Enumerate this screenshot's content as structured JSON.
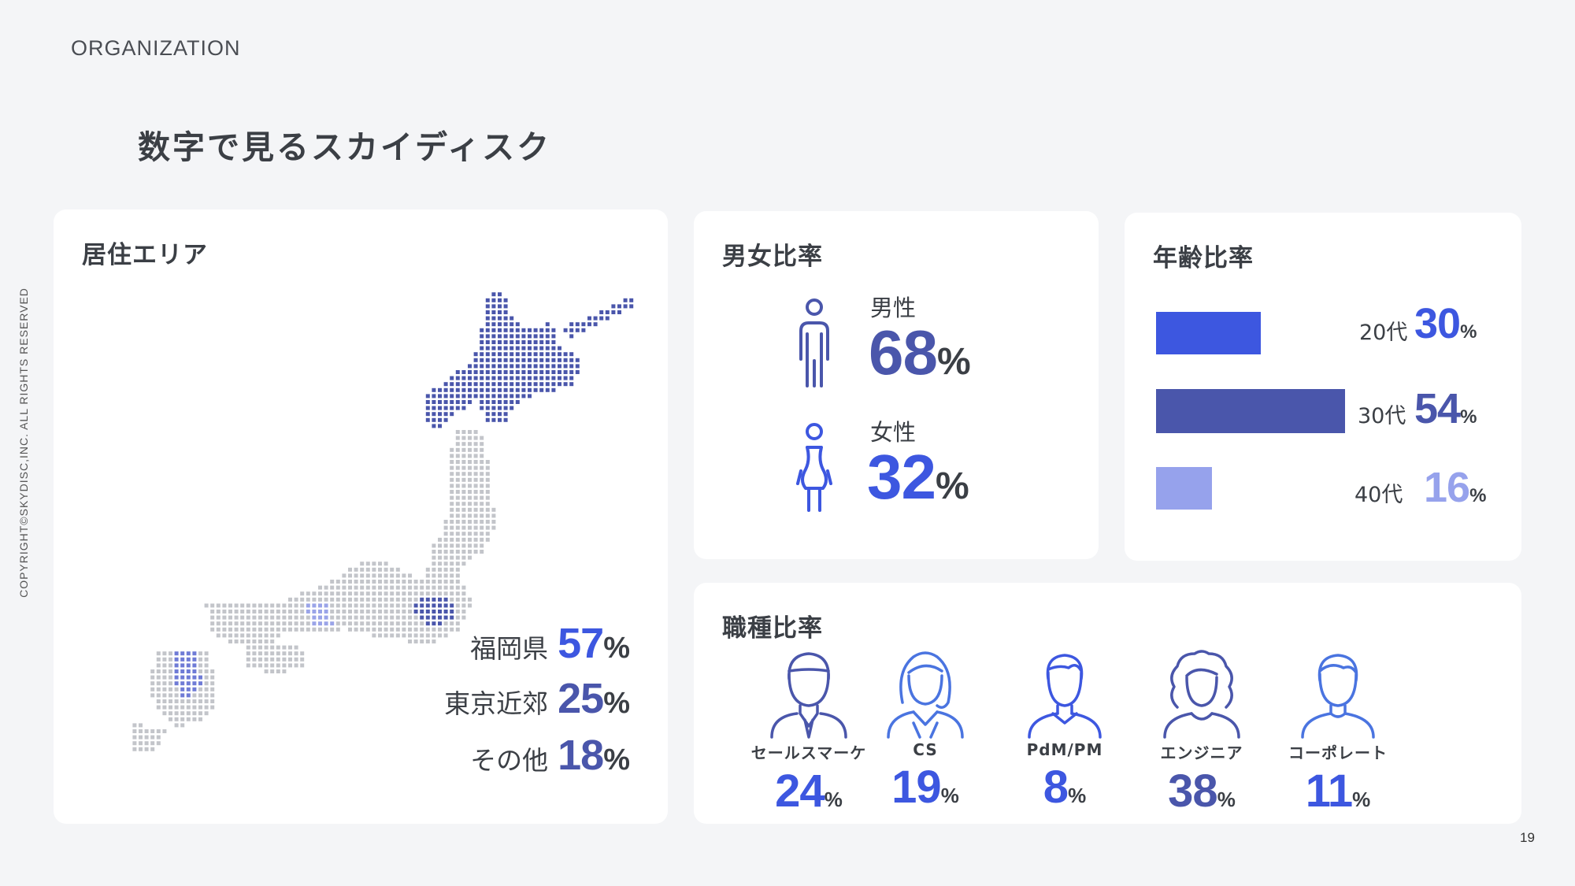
{
  "header": {
    "section_label": "ORGANIZATION",
    "title": "数字で見るスカイディスク"
  },
  "footer": {
    "copyright": "COPYRIGHT©SKYDISC,INC. ALL RIGHTS RESERVED",
    "page_number": "19"
  },
  "colors": {
    "accent_blue": "#3d57e0",
    "dark_indigo": "#4a56ab",
    "light_periwinkle": "#96a2ec",
    "text_dark": "#3b3f45"
  },
  "residence": {
    "title": "居住エリア",
    "stats": [
      {
        "label": "福岡県",
        "value": "57",
        "unit": "%"
      },
      {
        "label": "東京近郊",
        "value": "25",
        "unit": "%"
      },
      {
        "label": "その他",
        "value": "18",
        "unit": "%"
      }
    ]
  },
  "gender": {
    "title": "男女比率",
    "items": [
      {
        "label": "男性",
        "value": "68",
        "unit": "%",
        "icon": "male-icon"
      },
      {
        "label": "女性",
        "value": "32",
        "unit": "%",
        "icon": "female-icon"
      }
    ]
  },
  "age": {
    "title": "年齢比率",
    "items": [
      {
        "label": "20代",
        "value": "30",
        "unit": "%",
        "share": 30
      },
      {
        "label": "30代",
        "value": "54",
        "unit": "%",
        "share": 54
      },
      {
        "label": "40代",
        "value": "16",
        "unit": "%",
        "share": 16
      }
    ]
  },
  "occupation": {
    "title": "職種比率",
    "items": [
      {
        "label": "セールスマーケ",
        "value": "24",
        "unit": "%",
        "icon": "businessman-icon"
      },
      {
        "label": "CS",
        "value": "19",
        "unit": "%",
        "icon": "woman-support-icon"
      },
      {
        "label": "PdM/PM",
        "value": "8",
        "unit": "%",
        "icon": "man-collar-icon"
      },
      {
        "label": "エンジニア",
        "value": "38",
        "unit": "%",
        "icon": "woman-curly-hair-icon"
      },
      {
        "label": "コーポレート",
        "value": "11",
        "unit": "%",
        "icon": "man-icon"
      }
    ]
  }
}
